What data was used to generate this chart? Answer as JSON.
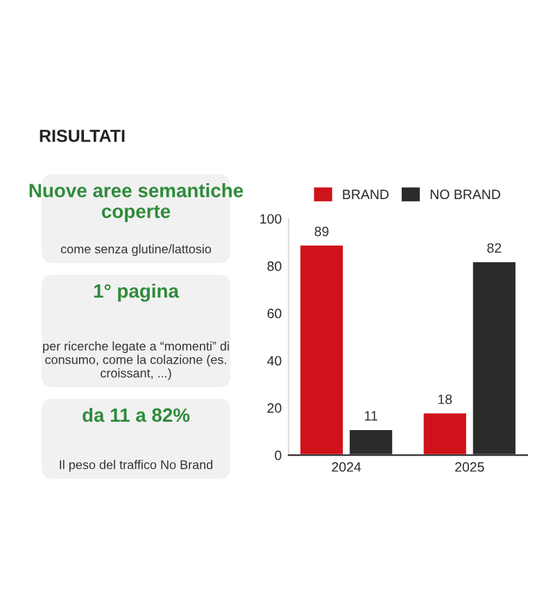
{
  "chart_data": {
    "type": "bar",
    "title": "RISULTATI",
    "categories": [
      "2024",
      "2025"
    ],
    "series": [
      {
        "name": "BRAND",
        "color": "#d0121b",
        "values": [
          89,
          18
        ]
      },
      {
        "name": "NO BRAND",
        "color": "#2b2b2b",
        "values": [
          11,
          82
        ]
      }
    ],
    "ylim": [
      0,
      100
    ],
    "yticks": [
      0,
      20,
      40,
      60,
      80,
      100
    ],
    "data_labels": true,
    "legend": "top",
    "grid": false,
    "annotations": [
      "Nuove aree semantiche coperte",
      "come senza glutine/lattosio",
      "1° pagina",
      "per ricerche legate a “momenti” di consumo, come la colazione (es. croissant, ...)",
      "da 11 a 82%",
      "Il peso del traffico No Brand"
    ]
  }
}
